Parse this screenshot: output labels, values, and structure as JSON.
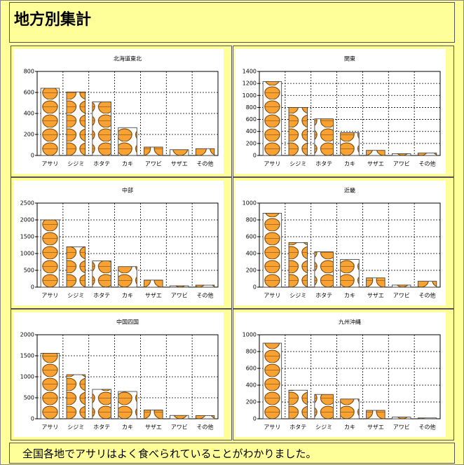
{
  "header": {
    "title": "地方別集計"
  },
  "chart_data": [
    {
      "type": "bar",
      "title": "北海道東北",
      "categories": [
        "アサリ",
        "シジミ",
        "ホタテ",
        "カキ",
        "アワビ",
        "サザエ",
        "その他"
      ],
      "values": [
        640,
        605,
        510,
        265,
        80,
        55,
        65
      ],
      "color": "#f7a233",
      "ylim": [
        0,
        800
      ],
      "yticks": [
        0,
        200,
        400,
        600,
        800
      ],
      "grid": true
    },
    {
      "type": "bar",
      "title": "関東",
      "categories": [
        "アサリ",
        "シジミ",
        "ホタテ",
        "カキ",
        "サザエ",
        "アワビ",
        "その他"
      ],
      "values": [
        1230,
        800,
        610,
        380,
        85,
        30,
        40
      ],
      "color": "#f7a233",
      "ylim": [
        0,
        1400
      ],
      "yticks": [
        0,
        200,
        400,
        600,
        800,
        1000,
        1200,
        1400
      ],
      "grid": true
    },
    {
      "type": "bar",
      "title": "中部",
      "categories": [
        "アサリ",
        "シジミ",
        "ホタテ",
        "カキ",
        "サザエ",
        "アワビ",
        "その他"
      ],
      "values": [
        2000,
        1200,
        780,
        610,
        210,
        40,
        60
      ],
      "color": "#f7a233",
      "ylim": [
        0,
        2500
      ],
      "yticks": [
        0,
        500,
        1000,
        1500,
        2000,
        2500
      ],
      "grid": true
    },
    {
      "type": "bar",
      "title": "近畿",
      "categories": [
        "アサリ",
        "シジミ",
        "ホタテ",
        "カキ",
        "サザエ",
        "アワビ",
        "その他"
      ],
      "values": [
        880,
        530,
        420,
        330,
        110,
        25,
        70
      ],
      "color": "#f7a233",
      "ylim": [
        0,
        1000
      ],
      "yticks": [
        0,
        200,
        400,
        600,
        800,
        1000
      ],
      "grid": true
    },
    {
      "type": "bar",
      "title": "中国四国",
      "categories": [
        "アサリ",
        "シジミ",
        "ホタテ",
        "カキ",
        "サザエ",
        "アワビ",
        "その他"
      ],
      "values": [
        1560,
        1050,
        700,
        650,
        210,
        80,
        75
      ],
      "color": "#f7a233",
      "ylim": [
        0,
        2000
      ],
      "yticks": [
        0,
        500,
        1000,
        1500,
        2000
      ],
      "grid": true
    },
    {
      "type": "bar",
      "title": "九州沖縄",
      "categories": [
        "アサリ",
        "ホタテ",
        "シジミ",
        "カキ",
        "サザエ",
        "アワビ",
        "その他"
      ],
      "values": [
        900,
        340,
        290,
        235,
        100,
        20,
        10
      ],
      "color": "#f7a233",
      "ylim": [
        0,
        1000
      ],
      "yticks": [
        0,
        200,
        400,
        600,
        800,
        1000
      ],
      "grid": true
    }
  ],
  "footer": {
    "text": "全国各地でアサリはよく食べられていることがわかりました。"
  }
}
